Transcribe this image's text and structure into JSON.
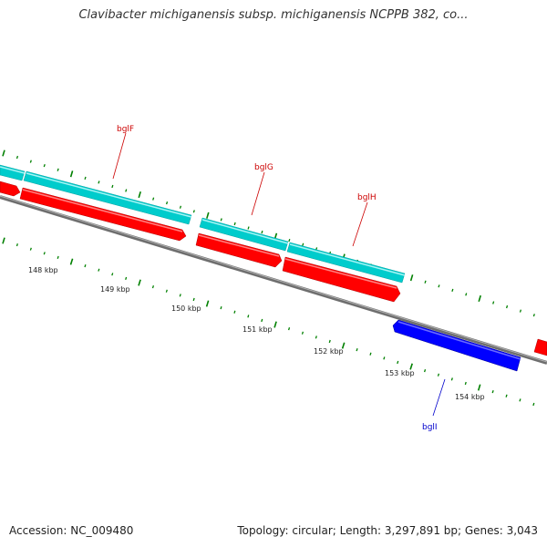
{
  "title": "Clavibacter michiganensis subsp. michiganensis NCPPB 382, co...",
  "footer": {
    "accession": "Accession: NC_009480",
    "summary": "Topology: circular; Length: 3,297,891 bp; Genes: 3,043"
  },
  "colors": {
    "forward_cds": "#ff0000",
    "reverse_cds": "#0000ff",
    "feature_track": "#00cccc",
    "backbone": "#808080",
    "tick": "#008000",
    "forward_label": "#cc0000",
    "reverse_label": "#0000cc"
  },
  "scale_ticks": [
    "148 kbp",
    "149 kbp",
    "150 kbp",
    "151 kbp",
    "152 kbp",
    "153 kbp",
    "154 kbp"
  ],
  "gene_labels": [
    {
      "id": "bglF",
      "text": "bglF",
      "strand": "forward"
    },
    {
      "id": "bglG",
      "text": "bglG",
      "strand": "forward"
    },
    {
      "id": "bglH",
      "text": "bglH",
      "strand": "forward"
    },
    {
      "id": "bglI",
      "text": "bglI",
      "strand": "reverse"
    }
  ]
}
